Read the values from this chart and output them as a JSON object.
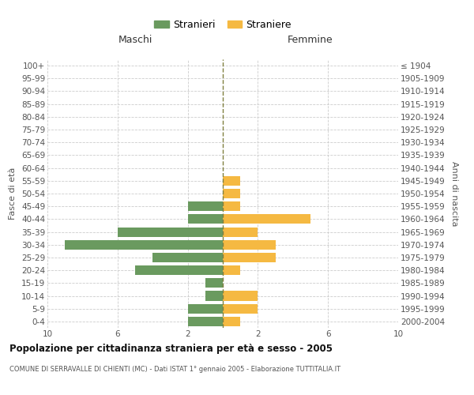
{
  "age_groups": [
    "100+",
    "95-99",
    "90-94",
    "85-89",
    "80-84",
    "75-79",
    "70-74",
    "65-69",
    "60-64",
    "55-59",
    "50-54",
    "45-49",
    "40-44",
    "35-39",
    "30-34",
    "25-29",
    "20-24",
    "15-19",
    "10-14",
    "5-9",
    "0-4"
  ],
  "birth_years": [
    "≤ 1904",
    "1905-1909",
    "1910-1914",
    "1915-1919",
    "1920-1924",
    "1925-1929",
    "1930-1934",
    "1935-1939",
    "1940-1944",
    "1945-1949",
    "1950-1954",
    "1955-1959",
    "1960-1964",
    "1965-1969",
    "1970-1974",
    "1975-1979",
    "1980-1984",
    "1985-1989",
    "1990-1994",
    "1995-1999",
    "2000-2004"
  ],
  "males": [
    0,
    0,
    0,
    0,
    0,
    0,
    0,
    0,
    0,
    0,
    0,
    2,
    2,
    6,
    9,
    4,
    5,
    1,
    1,
    2,
    2
  ],
  "females": [
    0,
    0,
    0,
    0,
    0,
    0,
    0,
    0,
    0,
    1,
    1,
    1,
    5,
    2,
    3,
    3,
    1,
    0,
    2,
    2,
    1
  ],
  "male_color": "#6a9a5f",
  "female_color": "#f5b942",
  "center_line_color": "#808040",
  "title": "Popolazione per cittadinanza straniera per età e sesso - 2005",
  "subtitle": "COMUNE DI SERRAVALLE DI CHIENTI (MC) - Dati ISTAT 1° gennaio 2005 - Elaborazione TUTTITALIA.IT",
  "xlabel_left": "Maschi",
  "xlabel_right": "Femmine",
  "ylabel_left": "Fasce di età",
  "ylabel_right": "Anni di nascita",
  "legend_male": "Stranieri",
  "legend_female": "Straniere",
  "xlim": 10,
  "background_color": "#ffffff",
  "grid_color": "#cccccc"
}
